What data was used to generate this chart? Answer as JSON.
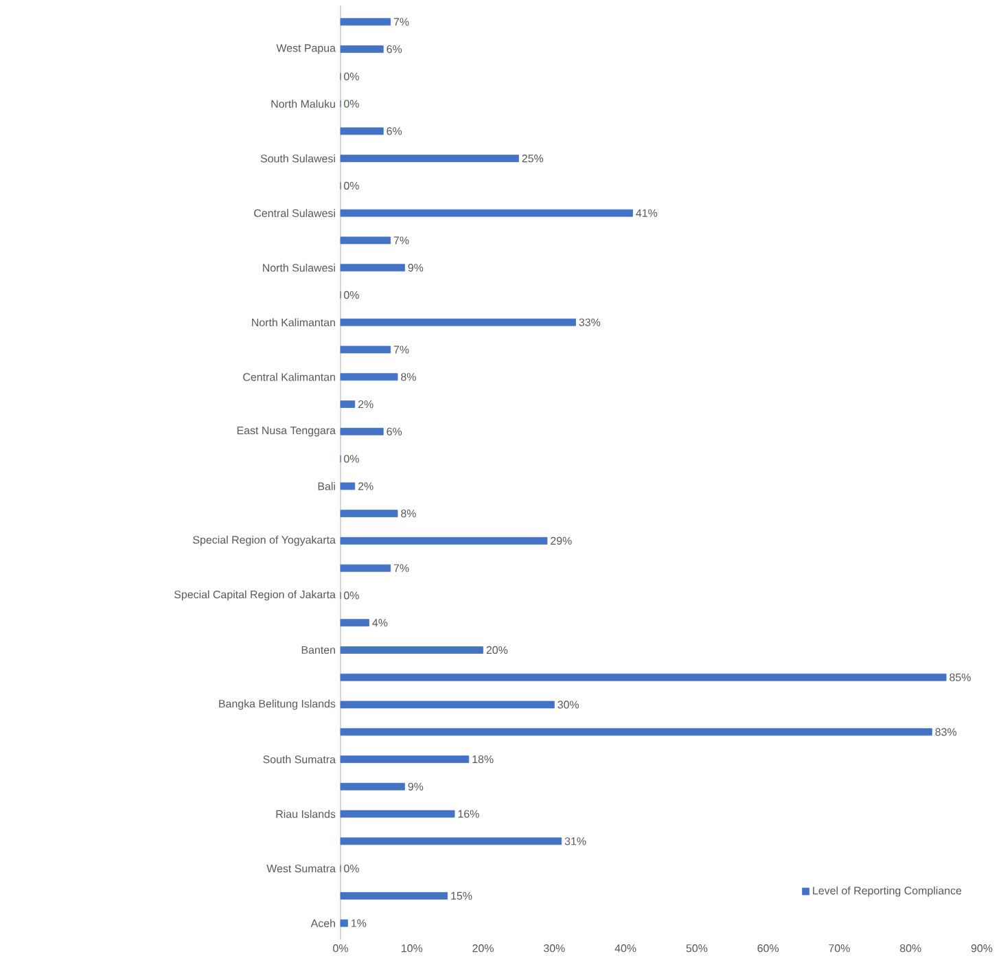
{
  "chart_data": {
    "type": "bar",
    "orientation": "horizontal",
    "categories": [
      null,
      "West Papua",
      null,
      "North Maluku",
      null,
      "South Sulawesi",
      null,
      "Central Sulawesi",
      null,
      "North Sulawesi",
      null,
      "North Kalimantan",
      null,
      "Central Kalimantan",
      null,
      "East Nusa Tenggara",
      null,
      "Bali",
      null,
      "Special Region of Yogyakarta",
      null,
      "Special Capital Region of Jakarta",
      null,
      "Banten",
      null,
      "Bangka Belitung Islands",
      null,
      "South Sumatra",
      null,
      "Riau Islands",
      null,
      "West Sumatra",
      null,
      "Aceh"
    ],
    "series": [
      {
        "name": "Level of Reporting Compliance",
        "color": "#4472c4",
        "values": [
          7,
          6,
          0,
          0,
          6,
          25,
          0,
          41,
          7,
          9,
          0,
          33,
          7,
          8,
          2,
          6,
          0,
          2,
          8,
          29,
          7,
          0,
          4,
          20,
          85,
          30,
          83,
          18,
          9,
          16,
          31,
          0,
          15,
          1
        ],
        "value_labels": [
          "7%",
          "6%",
          "0%",
          "0%",
          "6%",
          "25%",
          "0%",
          "41%",
          "7%",
          "9%",
          "0%",
          "33%",
          "7%",
          "8%",
          "2%",
          "6%",
          "0%",
          "2%",
          "8%",
          "29%",
          "7%",
          "0%",
          "4%",
          "20%",
          "85%",
          "30%",
          "83%",
          "18%",
          "9%",
          "16%",
          "31%",
          "0%",
          "15%",
          "1%"
        ]
      }
    ],
    "xlim": [
      0,
      90
    ],
    "xticks": [
      {
        "value": 0,
        "label": "0%"
      },
      {
        "value": 10,
        "label": "10%"
      },
      {
        "value": 20,
        "label": "20%"
      },
      {
        "value": 30,
        "label": "30%"
      },
      {
        "value": 40,
        "label": "40%"
      },
      {
        "value": 50,
        "label": "50%"
      },
      {
        "value": 60,
        "label": "60%"
      },
      {
        "value": 70,
        "label": "70%"
      },
      {
        "value": 80,
        "label": "80%"
      },
      {
        "value": 90,
        "label": "90%"
      }
    ],
    "legend": "bottom right",
    "grid": false
  }
}
